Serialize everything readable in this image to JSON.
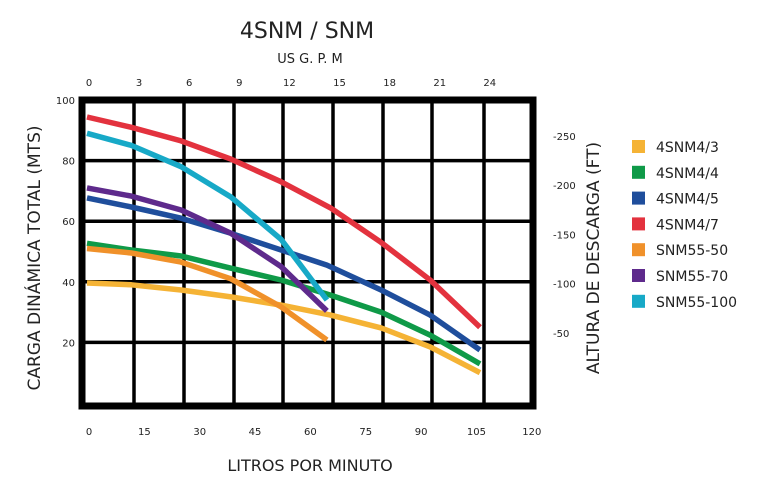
{
  "chart_data": {
    "type": "line",
    "title": "4SNM / SNM",
    "top_axis_label": "US G. P. M",
    "xlabel": "LITROS POR MINUTO",
    "ylabel": "CARGA DINÁMICA TOTAL (MTS)",
    "ylabel_right": "ALTURA DE DESCARGA (FT)",
    "xlim": [
      0,
      120
    ],
    "ylim": [
      0,
      100
    ],
    "x_ticks": [
      0,
      15,
      30,
      45,
      60,
      75,
      90,
      105,
      120
    ],
    "top_ticks": [
      0,
      3,
      6,
      9,
      12,
      15,
      18,
      21,
      24
    ],
    "y_ticks": [
      20,
      40,
      60,
      80,
      100
    ],
    "right_ticks": [
      "-250",
      "-200",
      "-150",
      "-100",
      "-50"
    ],
    "grid": true,
    "legend_position": "right",
    "series": [
      {
        "name": "4SNM4/3",
        "color": "#f5b335",
        "x": [
          0,
          12,
          25.5,
          39,
          52.6,
          66,
          79.7,
          93,
          106.5
        ],
        "y": [
          39.6,
          39,
          37.3,
          35,
          32.3,
          29,
          24.8,
          18.5,
          10
        ]
      },
      {
        "name": "4SNM4/4",
        "color": "#0f9a48",
        "x": [
          0,
          12,
          25.5,
          39,
          52.6,
          66,
          79.7,
          93,
          106.5
        ],
        "y": [
          52.7,
          50.5,
          48.5,
          44.5,
          40.6,
          35.6,
          30,
          22.4,
          12.9
        ]
      },
      {
        "name": "4SNM4/5",
        "color": "#1f4e9c",
        "x": [
          0,
          12,
          25.5,
          39,
          52.6,
          65,
          79.7,
          93,
          106.5
        ],
        "y": [
          67.7,
          64.7,
          61,
          56,
          50.5,
          45.5,
          37.3,
          29,
          17.5
        ]
      },
      {
        "name": "4SNM4/7",
        "color": "#e3323e",
        "x": [
          0,
          12,
          25.5,
          39,
          52.6,
          66,
          79.7,
          93,
          106.5
        ],
        "y": [
          94.4,
          91,
          86.5,
          80.5,
          73,
          64.4,
          53,
          40.6,
          25
        ]
      },
      {
        "name": "SNM55-50",
        "color": "#f0912a",
        "x": [
          0,
          12,
          25.5,
          39,
          52.6,
          65
        ],
        "y": [
          51,
          49.5,
          46.5,
          41,
          31.7,
          20.8
        ]
      },
      {
        "name": "SNM55-70",
        "color": "#5e2a8c",
        "x": [
          0,
          12,
          25.5,
          39,
          52.6,
          65
        ],
        "y": [
          71,
          68.3,
          63.7,
          56,
          45,
          30.4
        ]
      },
      {
        "name": "SNM55-100",
        "color": "#17a9c7",
        "x": [
          0,
          12,
          25.5,
          39,
          52.6,
          65
        ],
        "y": [
          89,
          85,
          78,
          68,
          54,
          34
        ]
      }
    ]
  }
}
